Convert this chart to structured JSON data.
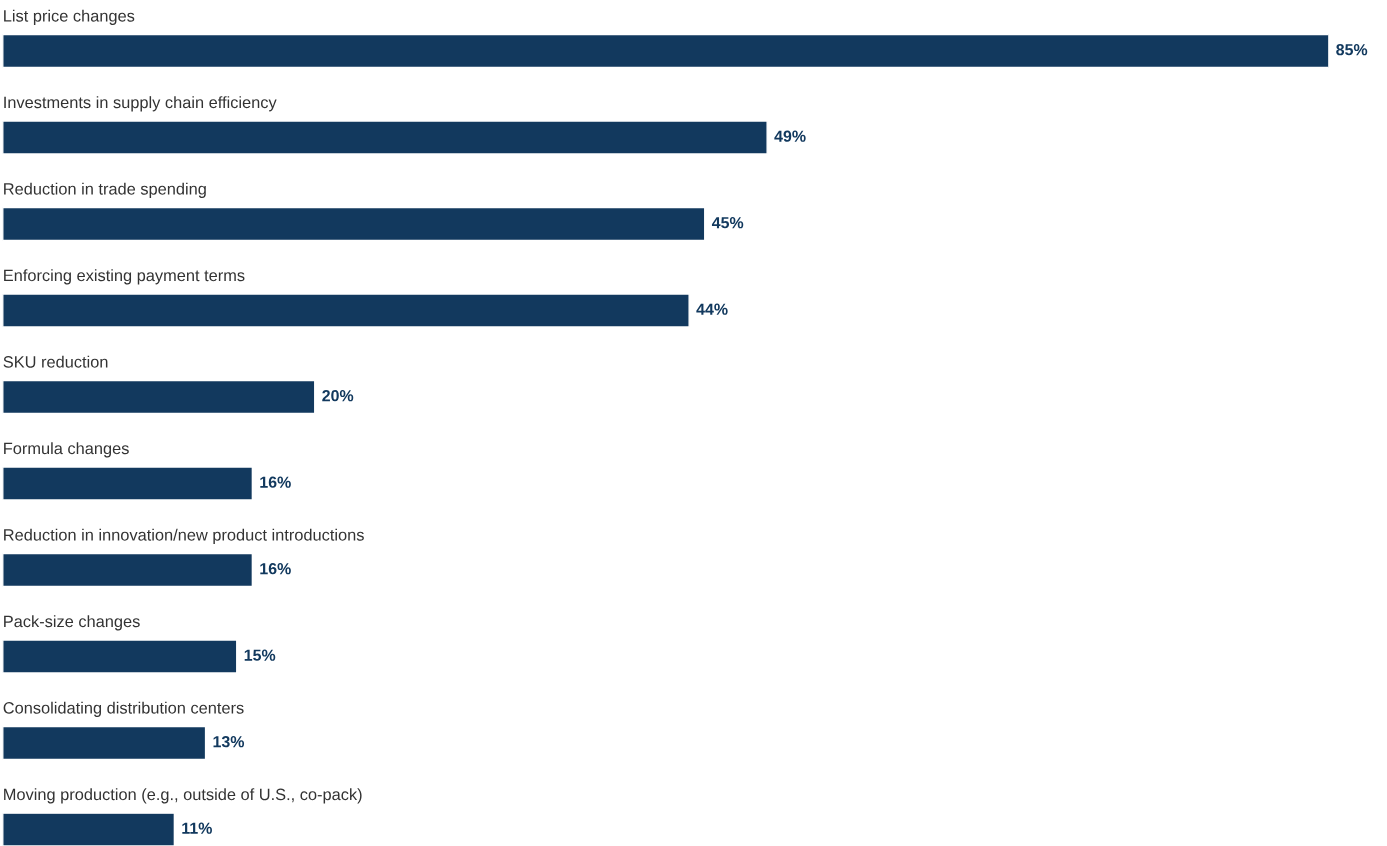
{
  "chart_data": {
    "type": "bar",
    "orientation": "horizontal",
    "categories": [
      "List price changes",
      "Investments in supply chain efficiency",
      "Reduction in trade spending",
      "Enforcing existing payment terms",
      "SKU reduction",
      "Formula changes",
      "Reduction in innovation/new product introductions",
      "Pack-size changes",
      "Consolidating distribution centers",
      "Moving production (e.g., outside of U.S., co-pack)"
    ],
    "values": [
      85,
      49,
      45,
      44,
      20,
      16,
      16,
      15,
      13,
      11
    ],
    "value_labels": [
      "85%",
      "49%",
      "45%",
      "44%",
      "20%",
      "16%",
      "16%",
      "15%",
      "13%",
      "11%"
    ],
    "color": "#12395e"
  }
}
